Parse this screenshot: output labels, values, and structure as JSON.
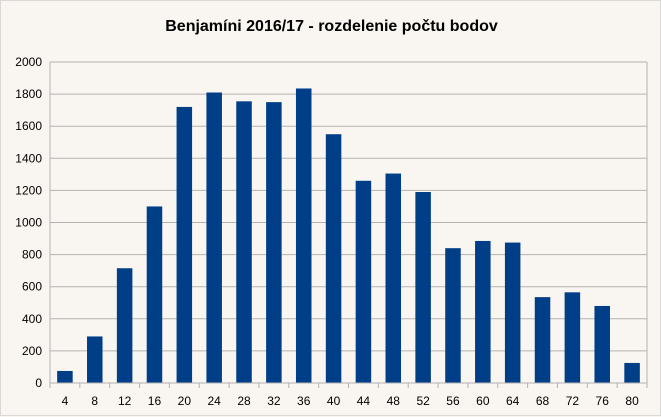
{
  "chart_data": {
    "type": "bar",
    "title": "Benjamíni 2016/17 - rozdelenie počtu bodov",
    "xlabel": "",
    "ylabel": "",
    "categories": [
      "4",
      "8",
      "12",
      "16",
      "20",
      "24",
      "28",
      "32",
      "36",
      "40",
      "44",
      "48",
      "52",
      "56",
      "60",
      "64",
      "68",
      "72",
      "76",
      "80"
    ],
    "values": [
      75,
      290,
      715,
      1100,
      1720,
      1810,
      1755,
      1750,
      1835,
      1550,
      1260,
      1305,
      1190,
      840,
      885,
      875,
      535,
      565,
      480,
      125
    ],
    "ylim": [
      0,
      2000
    ],
    "yticks": [
      "0",
      "200",
      "400",
      "600",
      "800",
      "1000",
      "1200",
      "1400",
      "1600",
      "1800",
      "2000"
    ],
    "bar_color": "#003f87",
    "grid": true,
    "legend": "none"
  }
}
